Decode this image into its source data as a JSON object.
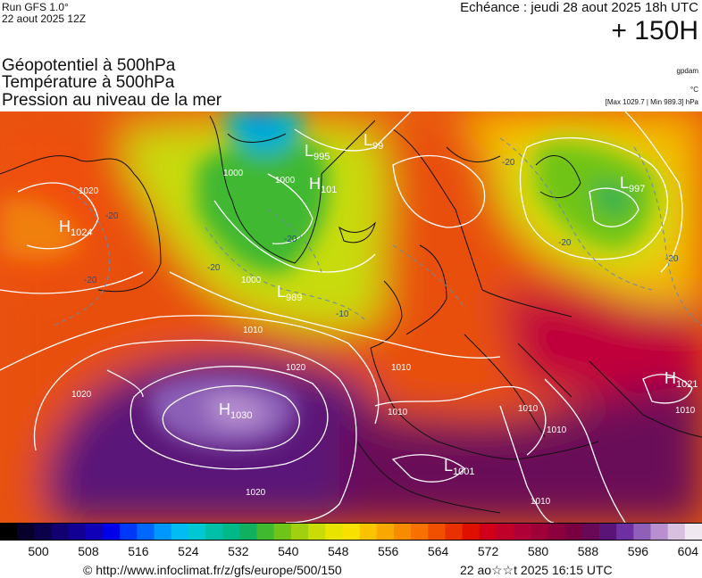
{
  "header": {
    "run_label": "Run GFS 1.0°",
    "run_date": "22 aout 2025 12Z",
    "valid_label": "Echéance : jeudi 28 aout 2025 18h UTC",
    "lead_time": "+ 150H"
  },
  "titles": [
    "Géopotentiel à 500hPa",
    "Température à 500hPa",
    "Pression au niveau de la mer"
  ],
  "units": {
    "geopotential": "gpdam",
    "temperature": "°C",
    "pressure_range": "[Max 1029.7 | Min 989.3] hPa"
  },
  "map": {
    "pressure_centers": [
      {
        "type": "H",
        "value": "1024"
      },
      {
        "type": "L",
        "value": "995"
      },
      {
        "type": "L",
        "value": "99"
      },
      {
        "type": "H",
        "value": "101"
      },
      {
        "type": "L",
        "value": "997"
      },
      {
        "type": "L",
        "value": "989"
      },
      {
        "type": "H",
        "value": "1030"
      },
      {
        "type": "H",
        "value": "1021"
      },
      {
        "type": "L",
        "value": "1001"
      }
    ],
    "isobar_labels": [
      "1020",
      "1000",
      "1000",
      "1000",
      "1010",
      "1020",
      "1010",
      "1020",
      "1020",
      "1010",
      "1010",
      "1010",
      "1010",
      "1010"
    ],
    "isotherm_labels": [
      "-20",
      "-20",
      "-20",
      "-20",
      "-10",
      "-20",
      "-20",
      "-20"
    ]
  },
  "colorbar": {
    "colors": [
      "#000000",
      "#07002a",
      "#0b004a",
      "#120070",
      "#120094",
      "#1000b8",
      "#0000e8",
      "#0038f8",
      "#0068ff",
      "#0098ff",
      "#00bcf0",
      "#00c8d0",
      "#00c0a8",
      "#00b888",
      "#10b060",
      "#40b830",
      "#70c418",
      "#a0d010",
      "#c8dc08",
      "#e8e400",
      "#f8e000",
      "#f8c400",
      "#f8a800",
      "#f88c00",
      "#f87000",
      "#f05000",
      "#e83000",
      "#e01000",
      "#d0001a",
      "#c00028",
      "#b00038",
      "#a0003a",
      "#8c003c",
      "#780040",
      "#6a0858",
      "#5a1478",
      "#6e30a0",
      "#9060b8",
      "#b890d0",
      "#d8c0e0",
      "#f0e8f0"
    ],
    "ticks": [
      "500",
      "508",
      "516",
      "524",
      "532",
      "540",
      "548",
      "556",
      "564",
      "572",
      "580",
      "588",
      "596",
      "604"
    ]
  },
  "footer": {
    "credit": "© http://www.infoclimat.fr/z/gfs/europe/500/150",
    "stamp": "22 ao☆☆t 2025 16:15 UTC"
  }
}
